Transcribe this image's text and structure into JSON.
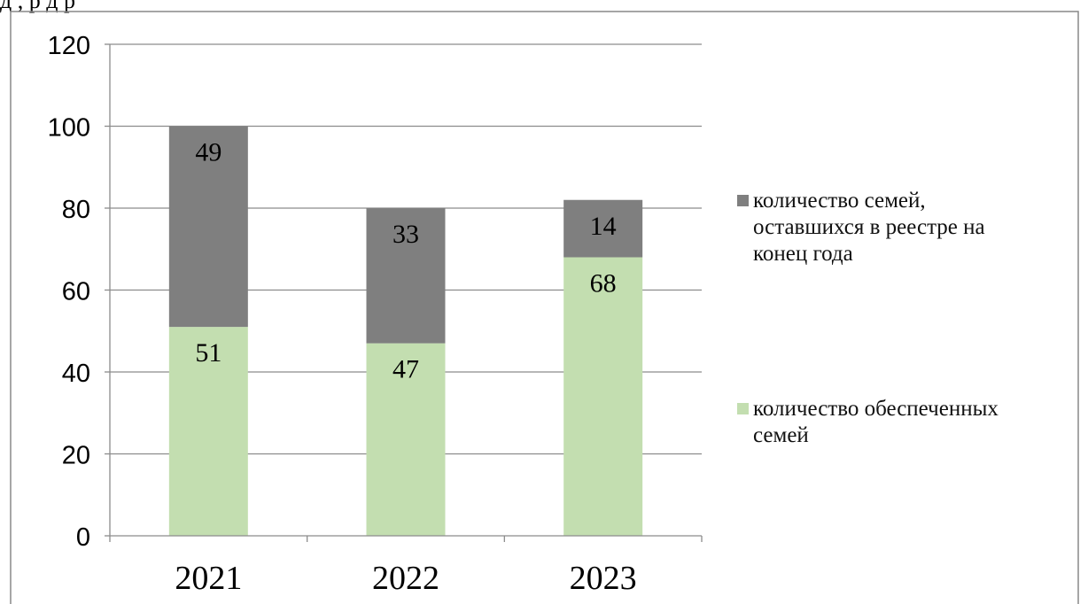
{
  "top_text": "д         , р                   д   р",
  "colors": {
    "dark_series": "#7f7f7f",
    "light_series": "#c3deb0",
    "grid": "#8c8c8c",
    "frame": "#888888",
    "axis": "#8c8c8c"
  },
  "legend": {
    "placement": "right",
    "items": [
      {
        "label": "количество семей, оставшихся в реестре на конец года",
        "lines": [
          "количество семей,",
          "оставшихся в реестре на",
          "конец года"
        ],
        "color": "#7f7f7f"
      },
      {
        "label": "количество обеспеченных семей",
        "lines": [
          "количество обеспеченных",
          "семей"
        ],
        "color": "#c3deb0"
      }
    ]
  },
  "chart_data": {
    "type": "bar",
    "stacked": true,
    "categories": [
      "2021",
      "2022",
      "2023"
    ],
    "series": [
      {
        "name": "количество обеспеченных семей",
        "values": [
          51,
          47,
          68
        ],
        "labels": [
          "51",
          "47",
          "68"
        ],
        "color": "#c3deb0"
      },
      {
        "name": "количество семей, оставшихся в реестре на конец года",
        "values": [
          49,
          33,
          14
        ],
        "labels": [
          "49",
          "33",
          "14"
        ],
        "color": "#7f7f7f"
      }
    ],
    "ylim": [
      0,
      120
    ],
    "yticks": [
      "0",
      "20",
      "40",
      "60",
      "80",
      "100",
      "120"
    ],
    "grid": true,
    "legend_position": "right"
  }
}
